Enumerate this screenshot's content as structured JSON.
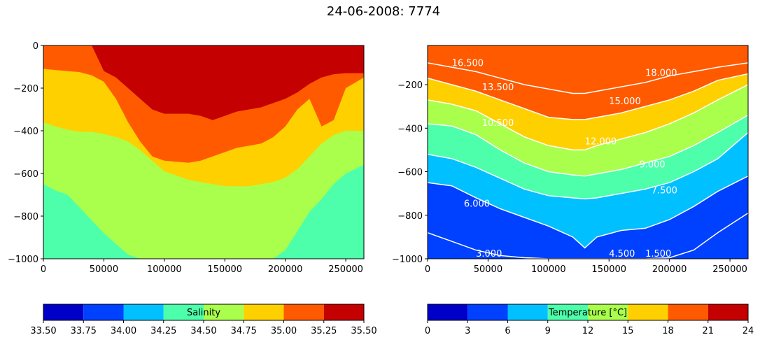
{
  "figure": {
    "title": "24-06-2008: 7774"
  },
  "chart_data": [
    {
      "type": "heatmap",
      "variable": "Salinity",
      "xlim": [
        0,
        265000
      ],
      "ylim": [
        -1000,
        0
      ],
      "x_ticks": [
        "0",
        "50000",
        "100000",
        "150000",
        "200000",
        "250000"
      ],
      "x_tick_values": [
        0,
        50000,
        100000,
        150000,
        200000,
        250000
      ],
      "y_ticks": [
        "0",
        "−200",
        "−400",
        "−600",
        "−800",
        "−1000"
      ],
      "y_tick_values": [
        0,
        -200,
        -400,
        -600,
        -800,
        -1000
      ],
      "filled_bands": [
        {
          "range": [
            34.25,
            34.5
          ],
          "color": "#4dffaa"
        },
        {
          "range": [
            34.5,
            34.75
          ],
          "color": "#aaff4d"
        },
        {
          "range": [
            34.75,
            35.0
          ],
          "color": "#ffd000"
        },
        {
          "range": [
            35.0,
            35.25
          ],
          "color": "#ff5a00"
        },
        {
          "range": [
            35.25,
            35.5
          ],
          "color": "#c40000"
        }
      ],
      "boundaries": {
        "x": [
          0,
          10000,
          20000,
          30000,
          40000,
          50000,
          60000,
          70000,
          80000,
          90000,
          100000,
          110000,
          120000,
          130000,
          140000,
          150000,
          160000,
          170000,
          180000,
          190000,
          200000,
          210000,
          220000,
          230000,
          240000,
          250000,
          265000
        ],
        "s34_5": [
          -650,
          -680,
          -700,
          -760,
          -820,
          -880,
          -930,
          -980,
          -1000,
          -1000,
          -1000,
          -1000,
          -1000,
          -1000,
          -1000,
          -1000,
          -1000,
          -1000,
          -1000,
          -1000,
          -960,
          -870,
          -780,
          -720,
          -650,
          -600,
          -560
        ],
        "s34_75": [
          -360,
          -380,
          -395,
          -405,
          -405,
          -415,
          -430,
          -450,
          -490,
          -540,
          -590,
          -610,
          -630,
          -640,
          -650,
          -660,
          -660,
          -660,
          -650,
          -640,
          -620,
          -580,
          -520,
          -460,
          -420,
          -400,
          -400
        ],
        "s35_0": [
          -110,
          -115,
          -120,
          -125,
          -140,
          -170,
          -250,
          -360,
          -450,
          -520,
          -540,
          -545,
          -550,
          -540,
          -520,
          -500,
          -480,
          -470,
          -460,
          -430,
          -380,
          -300,
          -250,
          -380,
          -350,
          -200,
          -150
        ],
        "s35_25": [
          0,
          0,
          0,
          0,
          0,
          -120,
          -150,
          -200,
          -250,
          -300,
          -320,
          -320,
          -320,
          -330,
          -350,
          -330,
          -310,
          -300,
          -290,
          -270,
          -250,
          -220,
          -180,
          -150,
          -135,
          -130,
          -130
        ]
      },
      "colorbar": {
        "label": "Salinity",
        "ticks": [
          "33.50",
          "33.75",
          "34.00",
          "34.25",
          "34.50",
          "34.75",
          "35.00",
          "35.25",
          "35.50"
        ],
        "colors": [
          "#0000c8",
          "#0040ff",
          "#00c0ff",
          "#4dffaa",
          "#aaff4d",
          "#ffd000",
          "#ff5a00",
          "#c40000"
        ]
      }
    },
    {
      "type": "heatmap",
      "variable": "Temperature [°C]",
      "xlim": [
        0,
        265000
      ],
      "ylim": [
        -1000,
        -20
      ],
      "x_ticks": [
        "0",
        "50000",
        "100000",
        "150000",
        "200000",
        "250000"
      ],
      "x_tick_values": [
        0,
        50000,
        100000,
        150000,
        200000,
        250000
      ],
      "y_ticks": [
        "−200",
        "−400",
        "−600",
        "−800",
        "−1000"
      ],
      "y_tick_values": [
        -200,
        -400,
        -600,
        -800,
        -1000
      ],
      "filled_bands": [
        {
          "range": [
            0,
            3
          ],
          "color": "#0000c8"
        },
        {
          "range": [
            3,
            6
          ],
          "color": "#0040ff"
        },
        {
          "range": [
            6,
            9
          ],
          "color": "#00c0ff"
        },
        {
          "range": [
            9,
            12
          ],
          "color": "#4dffaa"
        },
        {
          "range": [
            12,
            15
          ],
          "color": "#aaff4d"
        },
        {
          "range": [
            15,
            18
          ],
          "color": "#ffd000"
        },
        {
          "range": [
            18,
            21
          ],
          "color": "#ff5a00"
        }
      ],
      "contour_levels": [
        "1.500",
        "3.000",
        "4.500",
        "6.000",
        "7.500",
        "9.000",
        "10.500",
        "12.000",
        "13.500",
        "15.000",
        "16.500",
        "18.000"
      ],
      "contour_label_texts": [
        "16.500",
        "18.000",
        "13.500",
        "15.000",
        "10.500",
        "12.000",
        "9.000",
        "7.500",
        "6.000",
        "3.000",
        "4.500",
        "1.500"
      ],
      "colorbar": {
        "label": "Temperature [°C]",
        "ticks": [
          "0",
          "3",
          "6",
          "9",
          "12",
          "15",
          "18",
          "21",
          "24"
        ],
        "colors": [
          "#0000c8",
          "#0040ff",
          "#00c0ff",
          "#4dffaa",
          "#aaff4d",
          "#ffd000",
          "#ff5a00",
          "#c40000"
        ]
      }
    }
  ]
}
